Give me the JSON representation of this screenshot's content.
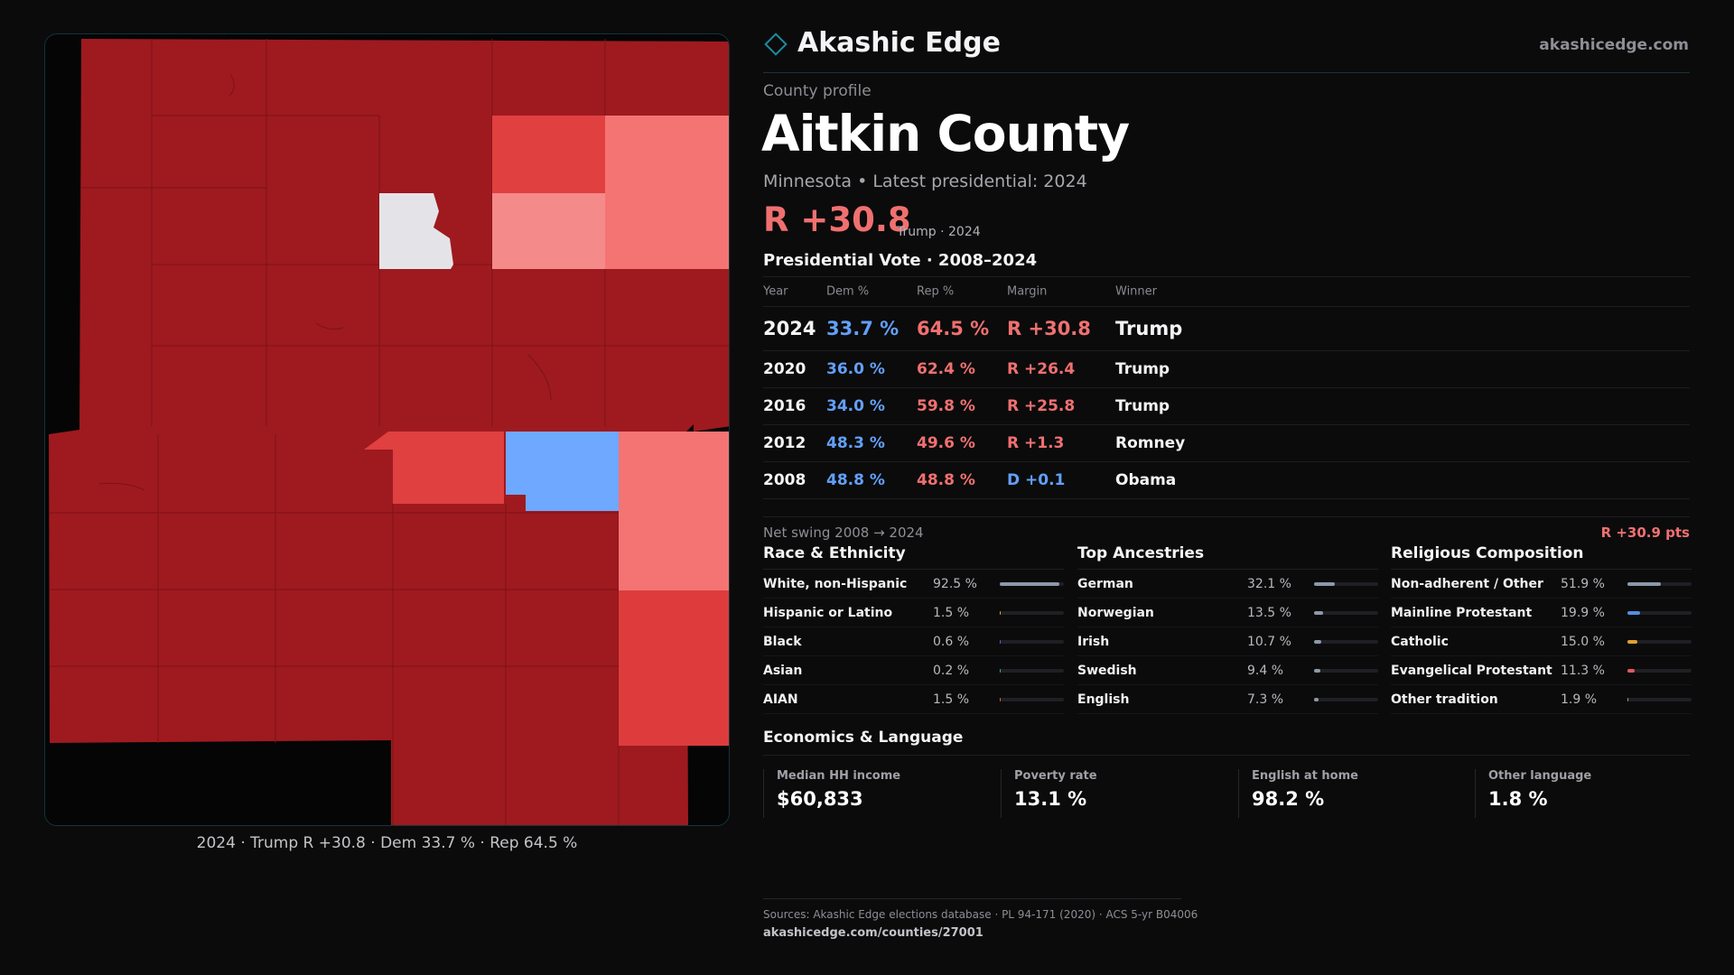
{
  "brand": {
    "name": "Akashic Edge",
    "url": "akashicedge.com",
    "accent": "#1d8a9c"
  },
  "profile": {
    "kicker": "County profile",
    "county": "Aitkin County",
    "subtitle": "Minnesota • Latest presidential: 2024",
    "headline_margin": "R +30.8",
    "headline_note": "Trump · 2024"
  },
  "map": {
    "caption": "2024 · Trump R +30.8 · Dem 33.7 % · Rep 64.5 %",
    "colors": {
      "safe_r": "#9e1a1f",
      "lean_r": "#e04040",
      "tilt_r": "#f47474",
      "toss": "#f58a8a",
      "lean_d": "#6ea8ff",
      "no_data": "#e4e4e8"
    }
  },
  "presidential": {
    "title": "Presidential Vote · 2008–2024",
    "headers": {
      "year": "Year",
      "dem": "Dem %",
      "rep": "Rep %",
      "margin": "Margin",
      "winner": "Winner"
    },
    "rows": [
      {
        "year": "2024",
        "dem": "33.7 %",
        "rep": "64.5 %",
        "margin": "R +30.8",
        "winner": "Trump",
        "party": "R"
      },
      {
        "year": "2020",
        "dem": "36.0 %",
        "rep": "62.4 %",
        "margin": "R +26.4",
        "winner": "Trump",
        "party": "R"
      },
      {
        "year": "2016",
        "dem": "34.0 %",
        "rep": "59.8 %",
        "margin": "R +25.8",
        "winner": "Trump",
        "party": "R"
      },
      {
        "year": "2012",
        "dem": "48.3 %",
        "rep": "49.6 %",
        "margin": "R +1.3",
        "winner": "Romney",
        "party": "R"
      },
      {
        "year": "2008",
        "dem": "48.8 %",
        "rep": "48.8 %",
        "margin": "D +0.1",
        "winner": "Obama",
        "party": "D"
      }
    ],
    "swing_label": "Net swing 2008 → 2024",
    "swing_value": "R +30.9 pts"
  },
  "race": {
    "title": "Race & Ethnicity",
    "items": [
      {
        "label": "White, non-Hispanic",
        "value": "92.5 %",
        "share": 0.925,
        "color": "#8d98a8"
      },
      {
        "label": "Hispanic or Latino",
        "value": "1.5 %",
        "share": 0.015,
        "color": "#d9a02b"
      },
      {
        "label": "Black",
        "value": "0.6 %",
        "share": 0.006,
        "color": "#5b5bd6"
      },
      {
        "label": "Asian",
        "value": "0.2 %",
        "share": 0.002,
        "color": "#3aa89a"
      },
      {
        "label": "AIAN",
        "value": "1.5 %",
        "share": 0.015,
        "color": "#c96a2b"
      }
    ]
  },
  "ancestry": {
    "title": "Top Ancestries",
    "items": [
      {
        "label": "German",
        "value": "32.1 %",
        "share": 0.321,
        "color": "#8d98a8"
      },
      {
        "label": "Norwegian",
        "value": "13.5 %",
        "share": 0.135,
        "color": "#8d98a8"
      },
      {
        "label": "Irish",
        "value": "10.7 %",
        "share": 0.107,
        "color": "#8d98a8"
      },
      {
        "label": "Swedish",
        "value": "9.4 %",
        "share": 0.094,
        "color": "#8d98a8"
      },
      {
        "label": "English",
        "value": "7.3 %",
        "share": 0.073,
        "color": "#8d98a8"
      }
    ]
  },
  "religion": {
    "title": "Religious Composition",
    "items": [
      {
        "label": "Non-adherent / Other",
        "value": "51.9 %",
        "share": 0.519,
        "color": "#8d98a8"
      },
      {
        "label": "Mainline Protestant",
        "value": "19.9 %",
        "share": 0.199,
        "color": "#4f8fe0"
      },
      {
        "label": "Catholic",
        "value": "15.0 %",
        "share": 0.15,
        "color": "#e0a030"
      },
      {
        "label": "Evangelical Protestant",
        "value": "11.3 %",
        "share": 0.113,
        "color": "#e05a5a"
      },
      {
        "label": "Other tradition",
        "value": "1.9 %",
        "share": 0.019,
        "color": "#8d98a8"
      }
    ]
  },
  "economics": {
    "title": "Economics & Language",
    "stats": [
      {
        "label": "Median HH income",
        "value": "$60,833"
      },
      {
        "label": "Poverty rate",
        "value": "13.1 %"
      },
      {
        "label": "English at home",
        "value": "98.2 %"
      },
      {
        "label": "Other language",
        "value": "1.8 %"
      }
    ]
  },
  "footer": {
    "sources": "Sources: Akashic Edge elections database · PL 94-171 (2020) · ACS 5-yr B04006",
    "county_url": "akashicedge.com/counties/27001"
  }
}
